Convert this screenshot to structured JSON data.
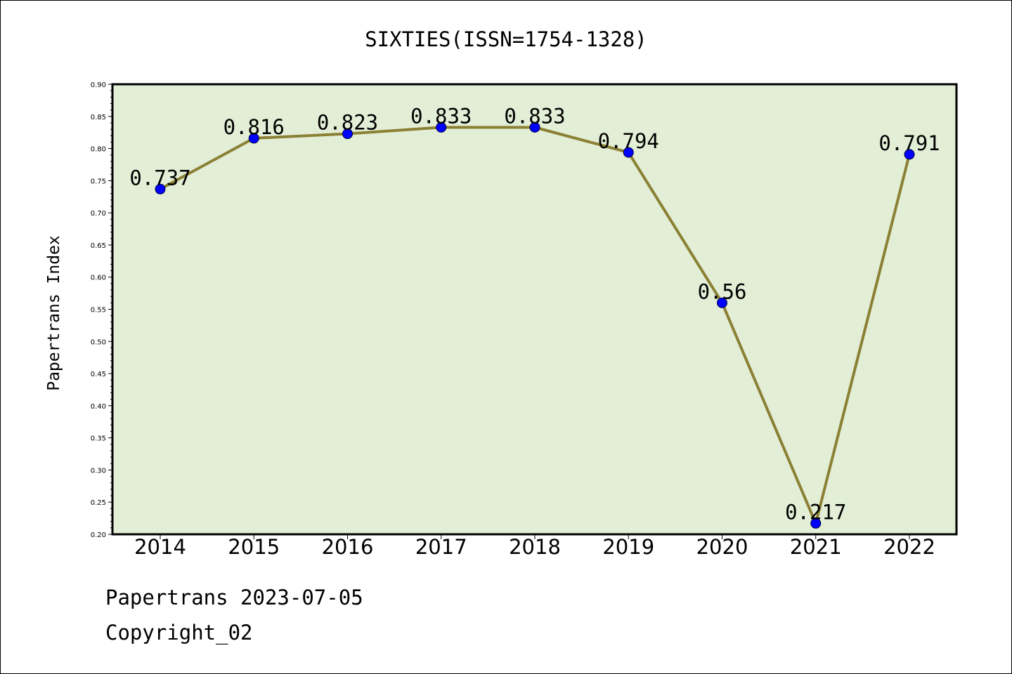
{
  "chart_data": {
    "type": "line",
    "title": "SIXTIES(ISSN=1754-1328)",
    "xlabel": "",
    "ylabel": "Papertrans Index",
    "categories": [
      "2014",
      "2015",
      "2016",
      "2017",
      "2018",
      "2019",
      "2020",
      "2021",
      "2022"
    ],
    "values": [
      0.737,
      0.816,
      0.823,
      0.833,
      0.833,
      0.794,
      0.56,
      0.217,
      0.791
    ],
    "data_labels": [
      "0.737",
      "0.816",
      "0.823",
      "0.833",
      "0.833",
      "0.794",
      "0.56",
      "0.217",
      "0.791"
    ],
    "ylim": [
      0.2,
      0.9
    ],
    "yticks": [
      "0.20",
      "0.25",
      "0.30",
      "0.35",
      "0.40",
      "0.45",
      "0.50",
      "0.55",
      "0.60",
      "0.65",
      "0.70",
      "0.75",
      "0.80",
      "0.85",
      "0.90"
    ],
    "grid": false,
    "colors": {
      "plot_background": "#e2efd6",
      "line": "#8b8035",
      "marker": "#0000ff"
    }
  },
  "footer": {
    "line1": "Papertrans 2023-07-05",
    "line2": "Copyright_02"
  }
}
